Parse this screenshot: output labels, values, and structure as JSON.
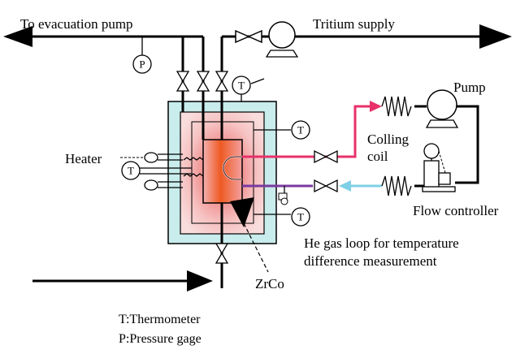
{
  "labels": {
    "evacuation_pump": "To evacuation pump",
    "tritium_supply": "Tritium supply",
    "pump": "Pump",
    "colling_coil_line1": "Colling",
    "colling_coil_line2": "coil",
    "heater": "Heater",
    "flow_controller": "Flow controller",
    "he_loop_line1": "He gas loop for temperature",
    "he_loop_line2": "difference measurement",
    "zrco": "ZrCo",
    "legend_t": "T:Thermometer",
    "legend_p": "P:Pressure gage"
  },
  "symbols": {
    "thermometer_letter": "T",
    "pressure_letter": "P"
  },
  "colors": {
    "jacket_fill": "#c9ecec",
    "furnace_glow_outer": "#f7d3d3",
    "furnace_glow_inner": "#f08a8a",
    "vessel_core": "#ee5a22",
    "vessel_edge": "#f0a0b0",
    "hot_line": "#e8306a",
    "cold_line": "#7fd0e6",
    "he_loop_line": "#7a3aa0"
  }
}
